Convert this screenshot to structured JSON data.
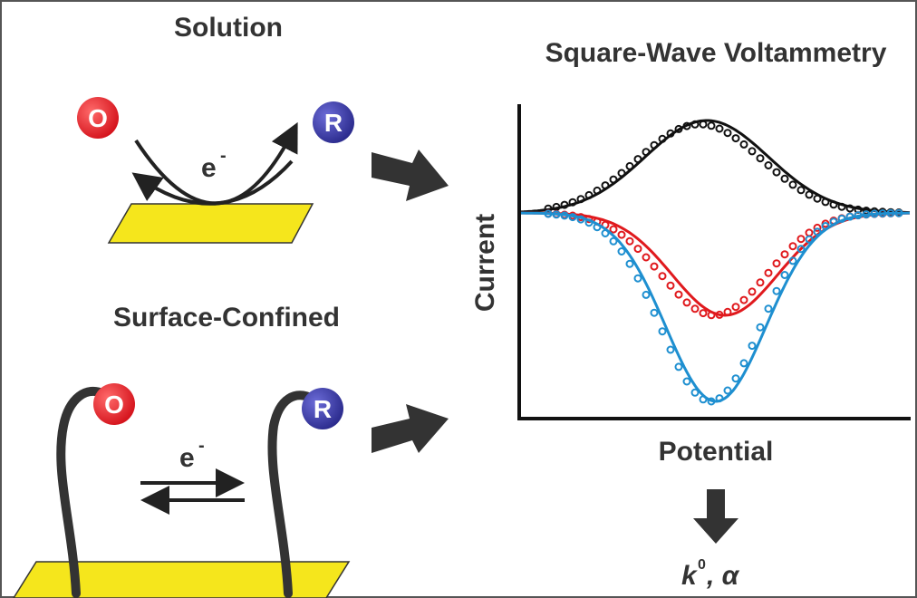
{
  "solution": {
    "title": "Solution",
    "oxidized": "O",
    "reduced": "R",
    "electron": "e",
    "charge": "-"
  },
  "surface": {
    "title": "Surface-Confined",
    "oxidized": "O",
    "reduced": "R",
    "electron": "e",
    "charge": "-"
  },
  "plot": {
    "title": "Square-Wave Voltammetry",
    "y_label": "Current",
    "x_label": "Potential"
  },
  "result": {
    "rate": "k",
    "rate_superscript": "0",
    "rest": ", α"
  }
}
